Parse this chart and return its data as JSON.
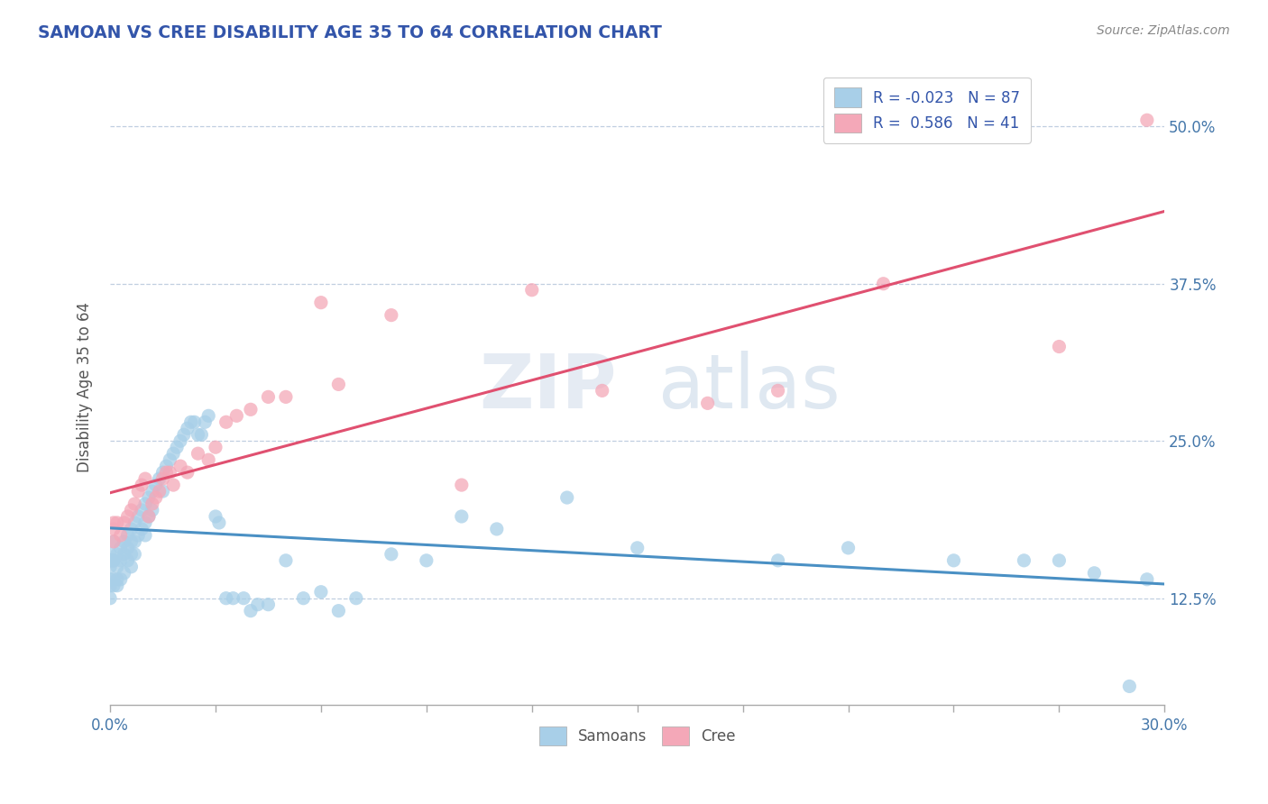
{
  "title": "SAMOAN VS CREE DISABILITY AGE 35 TO 64 CORRELATION CHART",
  "source": "Source: ZipAtlas.com",
  "ylabel": "Disability Age 35 to 64",
  "ytick_labels": [
    "12.5%",
    "25.0%",
    "37.5%",
    "50.0%"
  ],
  "ytick_values": [
    0.125,
    0.25,
    0.375,
    0.5
  ],
  "xlim": [
    0.0,
    0.3
  ],
  "ylim": [
    0.04,
    0.545
  ],
  "samoans_R": -0.023,
  "samoans_N": 87,
  "cree_R": 0.586,
  "cree_N": 41,
  "samoans_color": "#a8cfe8",
  "cree_color": "#f4a8b8",
  "samoans_line_color": "#4a90c4",
  "cree_line_color": "#e05070",
  "samoans_x": [
    0.001,
    0.001,
    0.001,
    0.001,
    0.001,
    0.002,
    0.002,
    0.002,
    0.002,
    0.003,
    0.003,
    0.003,
    0.004,
    0.004,
    0.004,
    0.005,
    0.005,
    0.005,
    0.006,
    0.006,
    0.006,
    0.006,
    0.007,
    0.007,
    0.007,
    0.008,
    0.008,
    0.009,
    0.009,
    0.01,
    0.01,
    0.01,
    0.011,
    0.011,
    0.012,
    0.012,
    0.013,
    0.014,
    0.015,
    0.015,
    0.016,
    0.017,
    0.018,
    0.019,
    0.02,
    0.021,
    0.022,
    0.023,
    0.024,
    0.025,
    0.026,
    0.027,
    0.028,
    0.03,
    0.031,
    0.033,
    0.035,
    0.038,
    0.04,
    0.042,
    0.045,
    0.05,
    0.055,
    0.06,
    0.065,
    0.07,
    0.08,
    0.09,
    0.1,
    0.11,
    0.13,
    0.15,
    0.19,
    0.21,
    0.24,
    0.26,
    0.27,
    0.28,
    0.29,
    0.295,
    0.0,
    0.0,
    0.0,
    0.0,
    0.0,
    0.0,
    0.0
  ],
  "samoans_y": [
    0.155,
    0.17,
    0.155,
    0.14,
    0.135,
    0.16,
    0.15,
    0.14,
    0.135,
    0.165,
    0.155,
    0.14,
    0.17,
    0.16,
    0.145,
    0.175,
    0.165,
    0.155,
    0.18,
    0.17,
    0.16,
    0.15,
    0.185,
    0.17,
    0.16,
    0.19,
    0.175,
    0.195,
    0.18,
    0.2,
    0.185,
    0.175,
    0.205,
    0.19,
    0.21,
    0.195,
    0.215,
    0.22,
    0.225,
    0.21,
    0.23,
    0.235,
    0.24,
    0.245,
    0.25,
    0.255,
    0.26,
    0.265,
    0.265,
    0.255,
    0.255,
    0.265,
    0.27,
    0.19,
    0.185,
    0.125,
    0.125,
    0.125,
    0.115,
    0.12,
    0.12,
    0.155,
    0.125,
    0.13,
    0.115,
    0.125,
    0.16,
    0.155,
    0.19,
    0.18,
    0.205,
    0.165,
    0.155,
    0.165,
    0.155,
    0.155,
    0.155,
    0.145,
    0.055,
    0.14,
    0.155,
    0.135,
    0.125,
    0.14,
    0.155,
    0.15,
    0.16
  ],
  "cree_x": [
    0.001,
    0.001,
    0.001,
    0.002,
    0.003,
    0.004,
    0.005,
    0.006,
    0.007,
    0.008,
    0.009,
    0.01,
    0.011,
    0.012,
    0.013,
    0.014,
    0.015,
    0.016,
    0.017,
    0.018,
    0.02,
    0.022,
    0.025,
    0.028,
    0.03,
    0.033,
    0.036,
    0.04,
    0.045,
    0.05,
    0.06,
    0.065,
    0.08,
    0.1,
    0.12,
    0.14,
    0.17,
    0.19,
    0.22,
    0.27,
    0.295
  ],
  "cree_y": [
    0.17,
    0.18,
    0.185,
    0.185,
    0.175,
    0.185,
    0.19,
    0.195,
    0.2,
    0.21,
    0.215,
    0.22,
    0.19,
    0.2,
    0.205,
    0.21,
    0.22,
    0.225,
    0.225,
    0.215,
    0.23,
    0.225,
    0.24,
    0.235,
    0.245,
    0.265,
    0.27,
    0.275,
    0.285,
    0.285,
    0.36,
    0.295,
    0.35,
    0.215,
    0.37,
    0.29,
    0.28,
    0.29,
    0.375,
    0.325,
    0.505
  ]
}
